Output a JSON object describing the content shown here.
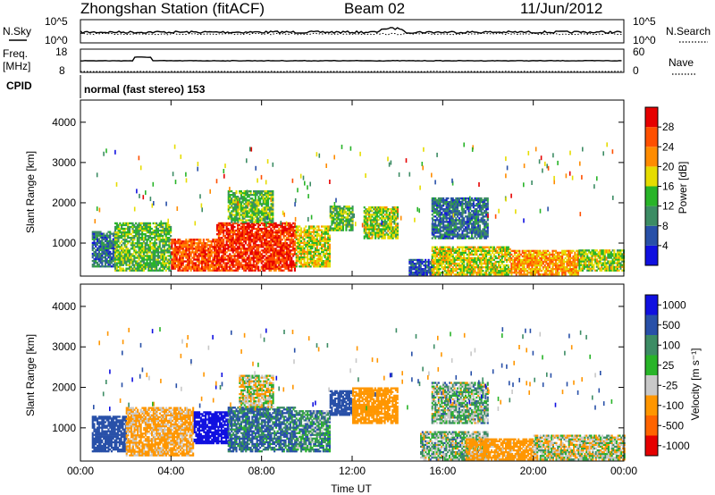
{
  "header": {
    "station": "Zhongshan Station (fitACF)",
    "beam": "Beam 02",
    "date": "11/Jun/2012"
  },
  "strip_panels": {
    "nsky_label": "N.Sky",
    "nsky_ticks": [
      "10^5",
      "10^0"
    ],
    "nsearch_label": "N.Search",
    "nsearch_ticks": [
      "10^5",
      "10^0"
    ],
    "freq_label_1": "Freq.",
    "freq_label_2": "[MHz]",
    "freq_ticks": [
      "18",
      "8"
    ],
    "nave_label": "Nave",
    "nave_ticks": [
      "60",
      "0"
    ],
    "cpid_label": "CPID",
    "cpid_text": "normal (fast stereo) 153"
  },
  "colors": {
    "power_scale": [
      "#1010e0",
      "#2850a8",
      "#3c8c64",
      "#28b428",
      "#e6dc00",
      "#ff8c00",
      "#ff5000",
      "#e60000"
    ],
    "velocity_scale": [
      "#1010e0",
      "#2850a8",
      "#3c8c64",
      "#28b428",
      "#c8c8c8",
      "#ff9600",
      "#ff6400",
      "#e60000"
    ]
  },
  "chart_data": [
    {
      "type": "heatmap",
      "panel": "power",
      "ylabel": "Slant Range [km]",
      "xlabel": "",
      "x_ticks": [
        "00:00",
        "04:00",
        "08:00",
        "12:00",
        "16:00",
        "20:00",
        "00:00"
      ],
      "y_ticks": [
        "1000",
        "2000",
        "3000",
        "4000"
      ],
      "xlim": [
        0,
        24
      ],
      "ylim": [
        180,
        4550
      ],
      "colorbar": {
        "label": "Power [dB]",
        "ticks": [
          "4",
          "8",
          "12",
          "16",
          "20",
          "24",
          "28"
        ],
        "range": [
          0,
          32
        ]
      },
      "regions": [
        {
          "t": [
            0.5,
            1.5
          ],
          "r": [
            400,
            1300
          ],
          "level": 8
        },
        {
          "t": [
            1.5,
            4.0
          ],
          "r": [
            300,
            1500
          ],
          "level": 14
        },
        {
          "t": [
            4.0,
            6.0
          ],
          "r": [
            300,
            1100
          ],
          "level": 26
        },
        {
          "t": [
            6.0,
            9.5
          ],
          "r": [
            300,
            1500
          ],
          "level": 28
        },
        {
          "t": [
            6.5,
            8.5
          ],
          "r": [
            1500,
            2300
          ],
          "level": 14
        },
        {
          "t": [
            9.5,
            11.0
          ],
          "r": [
            400,
            1400
          ],
          "level": 18
        },
        {
          "t": [
            11.0,
            12.0
          ],
          "r": [
            1300,
            1900
          ],
          "level": 14
        },
        {
          "t": [
            12.5,
            14.0
          ],
          "r": [
            1100,
            1900
          ],
          "level": 16
        },
        {
          "t": [
            14.5,
            15.5
          ],
          "r": [
            200,
            600
          ],
          "level": 6
        },
        {
          "t": [
            15.5,
            19.0
          ],
          "r": [
            200,
            900
          ],
          "level": 18
        },
        {
          "t": [
            15.5,
            18.0
          ],
          "r": [
            1100,
            2100
          ],
          "level": 8
        },
        {
          "t": [
            19.0,
            22.0
          ],
          "r": [
            200,
            800
          ],
          "level": 22
        },
        {
          "t": [
            22.0,
            24.0
          ],
          "r": [
            300,
            800
          ],
          "level": 16
        }
      ]
    },
    {
      "type": "heatmap",
      "panel": "velocity",
      "ylabel": "Slant Range [km]",
      "xlabel": "Time UT",
      "x_ticks": [
        "00:00",
        "04:00",
        "08:00",
        "12:00",
        "16:00",
        "20:00",
        "00:00"
      ],
      "y_ticks": [
        "1000",
        "2000",
        "3000",
        "4000"
      ],
      "xlim": [
        0,
        24
      ],
      "ylim": [
        180,
        4550
      ],
      "colorbar": {
        "label": "Velocity [m s⁻¹]",
        "ticks": [
          "1000",
          "500",
          "100",
          "25",
          "-25",
          "-100",
          "-500",
          "-1000"
        ],
        "range": [
          -1000,
          1000
        ]
      },
      "regions": [
        {
          "t": [
            0.5,
            2.0
          ],
          "r": [
            400,
            1300
          ],
          "level": 300
        },
        {
          "t": [
            2.0,
            5.0
          ],
          "r": [
            300,
            1500
          ],
          "level": -150
        },
        {
          "t": [
            5.0,
            6.5
          ],
          "r": [
            600,
            1400
          ],
          "level": 800
        },
        {
          "t": [
            6.5,
            9.5
          ],
          "r": [
            400,
            1500
          ],
          "level": 120
        },
        {
          "t": [
            7.0,
            8.5
          ],
          "r": [
            1500,
            2300
          ],
          "level": -80
        },
        {
          "t": [
            9.5,
            11.0
          ],
          "r": [
            400,
            1400
          ],
          "level": 60
        },
        {
          "t": [
            11.0,
            12.0
          ],
          "r": [
            1300,
            1900
          ],
          "level": 300
        },
        {
          "t": [
            12.0,
            14.0
          ],
          "r": [
            1100,
            2000
          ],
          "level": -300
        },
        {
          "t": [
            15.0,
            18.0
          ],
          "r": [
            200,
            900
          ],
          "level": 0
        },
        {
          "t": [
            15.5,
            18.0
          ],
          "r": [
            1100,
            2100
          ],
          "level": 0
        },
        {
          "t": [
            17.0,
            20.0
          ],
          "r": [
            200,
            700
          ],
          "level": -200
        },
        {
          "t": [
            20.0,
            24.0
          ],
          "r": [
            200,
            800
          ],
          "level": -60
        }
      ]
    }
  ]
}
